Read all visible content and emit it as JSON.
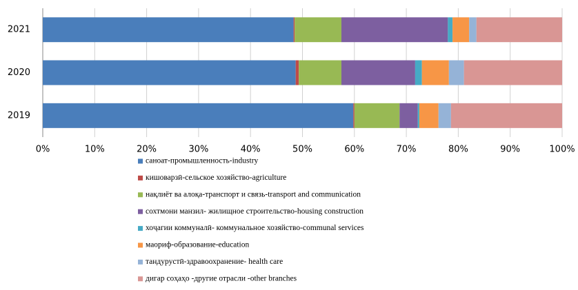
{
  "chart_data": {
    "type": "stacked_bar_horizontal_percent",
    "categories": [
      "2019",
      "2020",
      "2021"
    ],
    "series": [
      {
        "name": "саноат-промышленность-industry",
        "color": "#4a7ebb",
        "values": [
          59.8,
          48.7,
          48.3
        ]
      },
      {
        "name": "кишоварзӣ-сельское хозяйство-agriculture",
        "color": "#be4b48",
        "values": [
          0.2,
          0.6,
          0.2
        ]
      },
      {
        "name": "нақлиёт ва алоқа-транспорт и связь-transport and communication",
        "color": "#98b954",
        "values": [
          8.7,
          8.2,
          9.0
        ]
      },
      {
        "name": "сохтмони  манзил- жилищное строительство-housing construction",
        "color": "#7d5fa0",
        "values": [
          3.5,
          14.2,
          20.5
        ]
      },
      {
        "name": "хоҷагии коммуналӣ- коммунальное хозяйство-communal services",
        "color": "#46aac5",
        "values": [
          0.3,
          1.3,
          0.9
        ]
      },
      {
        "name": "маориф-образование-education",
        "color": "#f79646",
        "values": [
          3.7,
          5.2,
          3.2
        ]
      },
      {
        "name": "тандурустӣ-здравоохранение- health care",
        "color": "#95b3d7",
        "values": [
          2.4,
          2.9,
          1.4
        ]
      },
      {
        "name": "дигар соҳаҳо -другие отрасли -other branches",
        "color": "#d99694",
        "values": [
          21.4,
          18.9,
          16.5
        ]
      }
    ],
    "xlim": [
      0,
      100
    ],
    "xticks": [
      {
        "value": 0,
        "label": "0%"
      },
      {
        "value": 10,
        "label": "10%"
      },
      {
        "value": 20,
        "label": "20%"
      },
      {
        "value": 30,
        "label": "30%"
      },
      {
        "value": 40,
        "label": "40%"
      },
      {
        "value": 50,
        "label": "50%"
      },
      {
        "value": 60,
        "label": "60%"
      },
      {
        "value": 70,
        "label": "70%"
      },
      {
        "value": 80,
        "label": "80%"
      },
      {
        "value": 90,
        "label": "90%"
      },
      {
        "value": 100,
        "label": "100%"
      }
    ],
    "grid": true
  }
}
